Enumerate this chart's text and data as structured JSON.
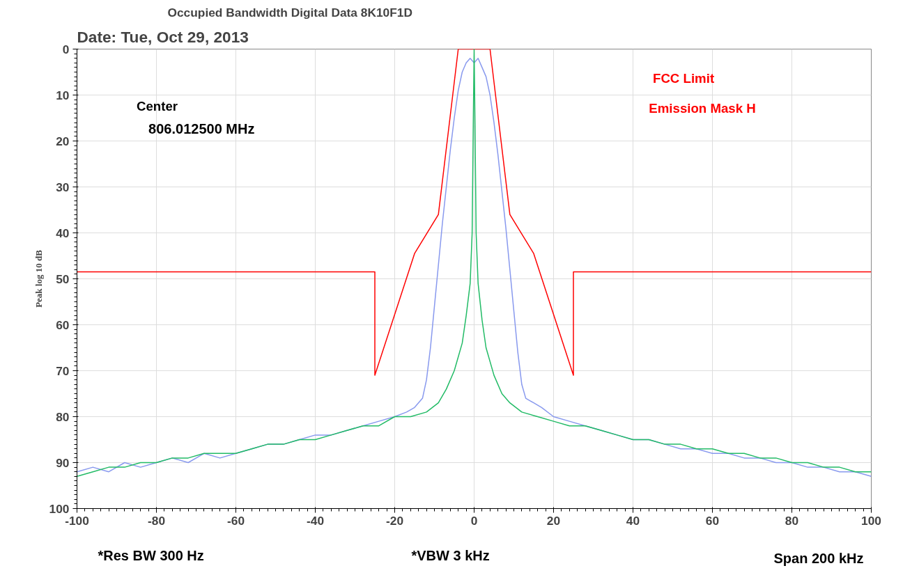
{
  "chart_data": {
    "type": "line",
    "title": "Occupied Bandwidth Digital Data 8K10F1D",
    "subtitle": "Date: Tue, Oct 29, 2013",
    "ylabel": "Peak log 10 dB",
    "xlim": [
      -100,
      100
    ],
    "xticks": [
      -100,
      -80,
      -60,
      -40,
      -20,
      0,
      20,
      40,
      60,
      80,
      100
    ],
    "ylim": [
      100,
      0
    ],
    "yticks": [
      0,
      10,
      20,
      30,
      40,
      50,
      60,
      70,
      80,
      90,
      100
    ],
    "grid": true,
    "marker": "none",
    "line_style": "solid",
    "annotations": [
      "Center",
      "806.012500 MHz",
      "FCC Limit",
      "Emission Mask H",
      "*Res BW 300 Hz",
      "*VBW 3 kHz",
      "Span 200 kHz"
    ],
    "series": [
      {
        "color": "#ff0000",
        "x": [
          -100,
          -25,
          -25,
          -15,
          -9,
          -4,
          4,
          9,
          15,
          25,
          25,
          100
        ],
        "values": [
          48.5,
          48.5,
          71,
          44.5,
          36,
          0,
          0,
          36,
          44.5,
          71,
          48.5,
          48.5
        ]
      },
      {
        "color": "#8899ee",
        "x": [
          -100,
          -96,
          -92,
          -88,
          -84,
          -80,
          -76,
          -72,
          -68,
          -64,
          -60,
          -56,
          -52,
          -48,
          -44,
          -40,
          -36,
          -32,
          -28,
          -24,
          -20,
          -17,
          -15,
          -13,
          -12,
          -11,
          -10,
          -9,
          -8,
          -7,
          -6,
          -5,
          -4,
          -3,
          -2,
          -1,
          0,
          1,
          2,
          3,
          4,
          5,
          6,
          7,
          8,
          9,
          10,
          11,
          12,
          13,
          15,
          17,
          20,
          24,
          28,
          32,
          36,
          40,
          44,
          48,
          52,
          56,
          60,
          64,
          68,
          72,
          76,
          80,
          84,
          88,
          92,
          96,
          100
        ],
        "values": [
          92,
          91,
          92,
          90,
          91,
          90,
          89,
          90,
          88,
          89,
          88,
          87,
          86,
          86,
          85,
          84,
          84,
          83,
          82,
          81,
          80,
          79,
          78,
          76,
          72,
          65,
          56,
          47,
          38,
          30,
          22,
          15,
          9,
          5,
          3,
          2,
          3,
          2,
          4,
          6,
          10,
          16,
          23,
          31,
          39,
          48,
          57,
          66,
          73,
          76,
          77,
          78,
          80,
          81,
          82,
          83,
          84,
          85,
          85,
          86,
          87,
          87,
          88,
          88,
          89,
          89,
          90,
          90,
          91,
          91,
          92,
          92,
          93
        ]
      },
      {
        "color": "#22bb66",
        "x": [
          -100,
          -96,
          -92,
          -88,
          -84,
          -80,
          -76,
          -72,
          -68,
          -64,
          -60,
          -56,
          -52,
          -48,
          -44,
          -40,
          -36,
          -32,
          -28,
          -24,
          -20,
          -16,
          -12,
          -9,
          -7,
          -5,
          -3,
          -2,
          -1,
          -0.5,
          -0.2,
          0,
          0.2,
          0.5,
          1,
          2,
          3,
          5,
          7,
          9,
          12,
          16,
          20,
          24,
          28,
          32,
          36,
          40,
          44,
          48,
          52,
          56,
          60,
          64,
          68,
          72,
          76,
          80,
          84,
          88,
          92,
          96,
          100
        ],
        "values": [
          93,
          92,
          91,
          91,
          90,
          90,
          89,
          89,
          88,
          88,
          88,
          87,
          86,
          86,
          85,
          85,
          84,
          83,
          82,
          82,
          80,
          80,
          79,
          77,
          74,
          70,
          64,
          58,
          51,
          40,
          15,
          0,
          15,
          40,
          51,
          59,
          65,
          71,
          75,
          77,
          79,
          80,
          81,
          82,
          82,
          83,
          84,
          85,
          85,
          86,
          86,
          87,
          87,
          88,
          88,
          89,
          89,
          90,
          90,
          91,
          91,
          92,
          92
        ]
      }
    ]
  }
}
